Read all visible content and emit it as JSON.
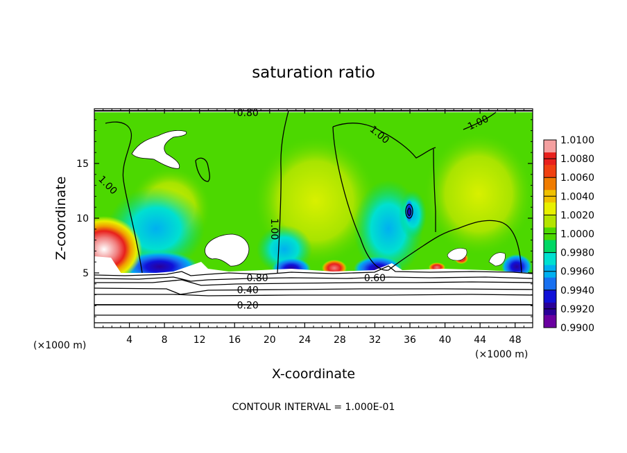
{
  "chart_data": {
    "type": "heatmap",
    "title": "saturation ratio",
    "xlabel": "X-coordinate",
    "ylabel": "Z-coordinate",
    "x_unit_left": "(×1000 m)",
    "x_unit_right": "(×1000 m)",
    "footer": "CONTOUR INTERVAL = 1.000E-01",
    "xlim": [
      0,
      50
    ],
    "ylim": [
      0,
      20
    ],
    "x_ticks": [
      4,
      8,
      12,
      16,
      20,
      24,
      28,
      32,
      36,
      40,
      44,
      48
    ],
    "y_ticks": [
      5,
      10,
      15
    ],
    "colorbar": {
      "ticks": [
        "1.0100",
        "1.0080",
        "1.0060",
        "1.0040",
        "1.0020",
        "1.0000",
        "0.9980",
        "0.9960",
        "0.9940",
        "0.9920",
        "0.9900"
      ],
      "colors": [
        "#f4a0a0",
        "#e8201c",
        "#f04010",
        "#f07c00",
        "#f0c000",
        "#e8f000",
        "#b4e400",
        "#4cd800",
        "#00d864",
        "#00e0d0",
        "#00b0f0",
        "#1870f0",
        "#1010d8",
        "#2a0098",
        "#6a00a0"
      ]
    },
    "contour_labels": [
      {
        "text": "1.00",
        "x": 1.5,
        "y": 13.0,
        "angle": 45
      },
      {
        "text": "1.00",
        "x": 20.5,
        "y": 9.0,
        "angle": 90
      },
      {
        "text": "1.00",
        "x": 32.5,
        "y": 17.6,
        "angle": 40
      },
      {
        "text": "1.00",
        "x": 43.8,
        "y": 18.7,
        "angle": -25
      },
      {
        "text": "0.80",
        "x": 17.5,
        "y": 19.6,
        "angle": 0
      },
      {
        "text": "0.80",
        "x": 18.6,
        "y": 4.5,
        "angle": 0
      },
      {
        "text": "0.60",
        "x": 32.0,
        "y": 4.5,
        "angle": 0
      },
      {
        "text": "0.40",
        "x": 17.5,
        "y": 3.4,
        "angle": 0
      },
      {
        "text": "0.20",
        "x": 17.5,
        "y": 2.0,
        "angle": 0
      }
    ],
    "lower_contour_levels": [
      0.2,
      0.4,
      0.6,
      0.8
    ],
    "grid": false
  }
}
